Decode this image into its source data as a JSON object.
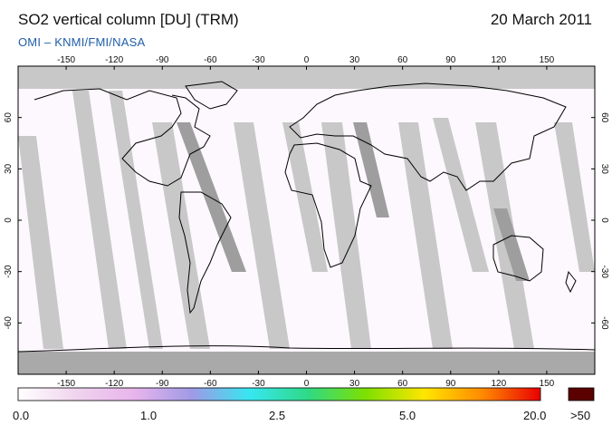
{
  "header": {
    "title": "SO2 vertical column [DU] (TRM)",
    "date": "20 March 2011",
    "source": "OMI  –  KNMI/FMI/NASA"
  },
  "map": {
    "projection": "equirectangular",
    "lon_ticks": [
      -150,
      -120,
      -90,
      -60,
      -30,
      0,
      30,
      60,
      90,
      120,
      150
    ],
    "lat_ticks": [
      60,
      30,
      0,
      -30,
      -60
    ],
    "lon_labels": [
      "-150",
      "-120",
      "-90",
      "-60",
      "-30",
      "0",
      "30",
      "60",
      "90",
      "120",
      "150"
    ],
    "lat_labels": [
      "60",
      "30",
      "0",
      "-30",
      "-60"
    ],
    "no_data_color": "#c8c8c8",
    "land_outline_color": "#000000"
  },
  "colorbar": {
    "labels": [
      "0.0",
      "1.0",
      "2.5",
      "5.0",
      "20.0",
      ">50"
    ],
    "stops": [
      "#ffffff",
      "#f0d4ee",
      "#e8b4ec",
      "#9f9ae6",
      "#36e7f0",
      "#2fd985",
      "#7ee000",
      "#ffe600",
      "#ff8a00",
      "#e90000"
    ],
    "over_color": "#5a0000"
  }
}
